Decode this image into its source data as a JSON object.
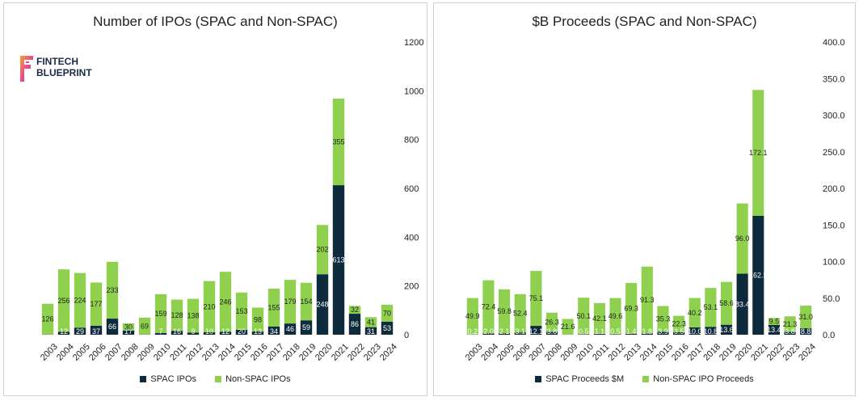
{
  "logo": {
    "line1": "FINTECH",
    "line2": "BLUEPRINT"
  },
  "colors": {
    "spac": "#0e2b3d",
    "nonspac": "#8fd14f",
    "grid": "#e6e6e6"
  },
  "chart_data": [
    {
      "type": "bar",
      "stacked": true,
      "title": "Number of IPOs (SPAC and Non-SPAC)",
      "categories": [
        "2003",
        "2004",
        "2005",
        "2006",
        "2007",
        "2008",
        "2009",
        "2010",
        "2011",
        "2012",
        "2013",
        "2014",
        "2015",
        "2016",
        "2017",
        "2018",
        "2019",
        "2020",
        "2021",
        "2022",
        "2023",
        "2024"
      ],
      "series": [
        {
          "name": "SPAC IPOs",
          "values": [
            1,
            12,
            29,
            37,
            66,
            17,
            1,
            7,
            16,
            9,
            10,
            12,
            20,
            13,
            34,
            46,
            59,
            248,
            613,
            86,
            31,
            53
          ]
        },
        {
          "name": "Non-SPAC IPOs",
          "values": [
            126,
            256,
            224,
            177,
            233,
            30,
            69,
            159,
            128,
            138,
            210,
            246,
            153,
            98,
            155,
            179,
            154,
            202,
            355,
            32,
            41,
            70
          ]
        }
      ],
      "labels": {
        "spac": [
          "",
          "12",
          "29",
          "37",
          "66",
          "17",
          "",
          "7",
          "16",
          "9",
          "10",
          "12",
          "20",
          "13",
          "34",
          "46",
          "59",
          "248",
          "613",
          "86",
          "31",
          "53"
        ],
        "nonspac": [
          "126",
          "256",
          "224",
          "177",
          "233",
          "30",
          "69",
          "159",
          "128",
          "138",
          "210",
          "246",
          "153",
          "98",
          "155",
          "179",
          "154",
          "202",
          "355",
          "32",
          "41",
          "70"
        ]
      },
      "ylim": [
        0,
        1200
      ],
      "yticks": [
        "0",
        "200",
        "400",
        "600",
        "800",
        "1000",
        "1200"
      ],
      "y_axis": "right",
      "grid": false,
      "legend": "bottom"
    },
    {
      "type": "bar",
      "stacked": true,
      "title": "$B Proceeds (SPAC and Non-SPAC)",
      "categories": [
        "2003",
        "2004",
        "2005",
        "2006",
        "2007",
        "2008",
        "2009",
        "2010",
        "2011",
        "2012",
        "2013",
        "2014",
        "2015",
        "2016",
        "2017",
        "2018",
        "2019",
        "2020",
        "2021",
        "2022",
        "2023",
        "2024"
      ],
      "series": [
        {
          "name": "SPAC Proceeds $M",
          "values": [
            0.2,
            2.0,
            2.1,
            3.1,
            12.1,
            3.8,
            0.0,
            0.5,
            1.1,
            0.5,
            1.4,
            1.8,
            3.9,
            3.5,
            10.0,
            10.8,
            13.6,
            83.4,
            162.5,
            13.4,
            3.8,
            8.8
          ]
        },
        {
          "name": "Non-SPAC IPO Proceeds",
          "values": [
            49.9,
            72.4,
            59.8,
            52.4,
            75.1,
            26.3,
            21.6,
            50.1,
            42.1,
            49.6,
            69.3,
            91.3,
            35.3,
            22.3,
            40.2,
            53.1,
            58.6,
            96.0,
            172.1,
            9.5,
            21.3,
            31.0
          ]
        }
      ],
      "labels": {
        "spac": [
          "0.2",
          "2.0",
          "2.1",
          "3.1",
          "12.1",
          "3.8",
          "",
          "0.5",
          "1.1",
          "0.5",
          "1.4",
          "1.8",
          "3.9",
          "3.5",
          "10.0",
          "10.8",
          "13.6",
          "83.4",
          "162.5",
          "13.4",
          "3.8",
          "8.8"
        ],
        "nonspac": [
          "49.9",
          "72.4",
          "59.8",
          "52.4",
          "75.1",
          "26.3",
          "21.6",
          "50.1",
          "42.1",
          "49.6",
          "69.3",
          "91.3",
          "35.3",
          "22.3",
          "40.2",
          "53.1",
          "58.6",
          "96.0",
          "172.1",
          "9.5",
          "21.3",
          "31.0"
        ]
      },
      "ylim": [
        0,
        400
      ],
      "yticks": [
        "0.0",
        "50.0",
        "100.0",
        "150.0",
        "200.0",
        "250.0",
        "300.0",
        "350.0",
        "400.0"
      ],
      "y_axis": "right",
      "grid": false,
      "legend": "bottom"
    }
  ]
}
